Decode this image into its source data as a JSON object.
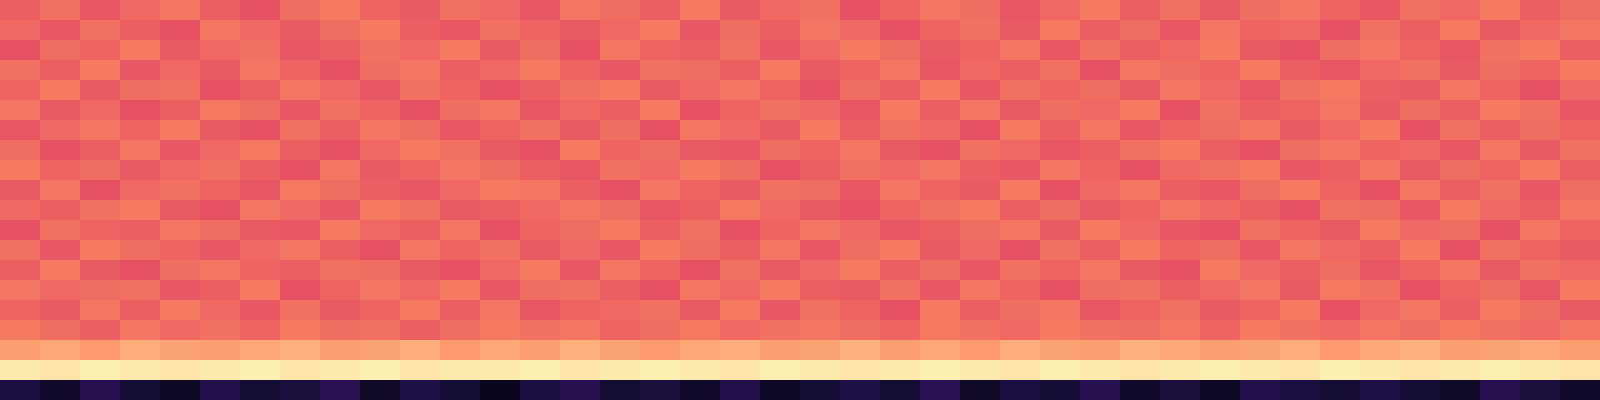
{
  "chart_data": {
    "type": "heatmap",
    "tick_labels": false,
    "zlim": [
      0,
      100
    ],
    "cells": [
      [
        66,
        70,
        64,
        68,
        71,
        66,
        63,
        69,
        72,
        67,
        65,
        70,
        68,
        64,
        71,
        69,
        66,
        72,
        65,
        68,
        70,
        63,
        67,
        71,
        69,
        64,
        68,
        72,
        66,
        70,
        65,
        69,
        71,
        67,
        64,
        70,
        68,
        72,
        66,
        69
      ],
      [
        68,
        64,
        70,
        66,
        63,
        71,
        68,
        65,
        69,
        72,
        66,
        64,
        70,
        67,
        65,
        68,
        72,
        64,
        69,
        66,
        71,
        68,
        63,
        67,
        70,
        65,
        72,
        66,
        69,
        64,
        71,
        67,
        68,
        63,
        70,
        66,
        72,
        65,
        68,
        71
      ],
      [
        63,
        69,
        67,
        72,
        65,
        68,
        70,
        64,
        66,
        70,
        68,
        72,
        65,
        69,
        63,
        71,
        67,
        66,
        70,
        64,
        68,
        72,
        69,
        65,
        67,
        71,
        64,
        70,
        66,
        68,
        72,
        65,
        63,
        69,
        71,
        67,
        64,
        70,
        72,
        66
      ],
      [
        70,
        66,
        72,
        64,
        68,
        65,
        71,
        67,
        63,
        69,
        71,
        66,
        68,
        72,
        67,
        64,
        70,
        69,
        66,
        72,
        65,
        67,
        71,
        64,
        68,
        66,
        70,
        63,
        71,
        69,
        67,
        72,
        66,
        64,
        68,
        70,
        65,
        69,
        67,
        72
      ],
      [
        67,
        72,
        65,
        69,
        70,
        63,
        66,
        71,
        68,
        64,
        70,
        67,
        63,
        66,
        70,
        72,
        65,
        68,
        71,
        67,
        63,
        69,
        66,
        72,
        64,
        70,
        67,
        69,
        65,
        71,
        68,
        64,
        70,
        72,
        66,
        65,
        71,
        67,
        63,
        68
      ],
      [
        71,
        65,
        68,
        63,
        66,
        72,
        69,
        64,
        70,
        67,
        63,
        69,
        71,
        64,
        68,
        66,
        72,
        63,
        67,
        70,
        68,
        64,
        72,
        66,
        71,
        65,
        69,
        68,
        72,
        63,
        70,
        66,
        67,
        71,
        65,
        69,
        66,
        72,
        70,
        64
      ],
      [
        64,
        68,
        71,
        67,
        72,
        65,
        63,
        70,
        66,
        71,
        69,
        64,
        67,
        70,
        65,
        69,
        63,
        71,
        68,
        65,
        72,
        66,
        70,
        68,
        63,
        72,
        66,
        71,
        64,
        67,
        69,
        71,
        65,
        68,
        72,
        63,
        70,
        66,
        69,
        67
      ],
      [
        69,
        63,
        66,
        71,
        64,
        68,
        72,
        66,
        63,
        68,
        72,
        70,
        65,
        63,
        72,
        67,
        69,
        65,
        64,
        69,
        67,
        71,
        65,
        63,
        70,
        68,
        64,
        66,
        70,
        72,
        66,
        63,
        69,
        71,
        67,
        68,
        64,
        71,
        65,
        70
      ],
      [
        72,
        67,
        69,
        65,
        68,
        70,
        66,
        63,
        71,
        65,
        67,
        71,
        69,
        66,
        64,
        70,
        68,
        72,
        69,
        63,
        66,
        70,
        68,
        71,
        66,
        64,
        71,
        67,
        63,
        68,
        70,
        72,
        64,
        66,
        71,
        65,
        69,
        67,
        72,
        66
      ],
      [
        65,
        71,
        63,
        68,
        70,
        67,
        64,
        72,
        69,
        66,
        64,
        68,
        72,
        71,
        66,
        63,
        71,
        67,
        65,
        70,
        69,
        64,
        71,
        67,
        65,
        72,
        63,
        68,
        71,
        66,
        64,
        69,
        72,
        67,
        63,
        71,
        66,
        70,
        64,
        69
      ],
      [
        68,
        66,
        70,
        72,
        65,
        63,
        71,
        68,
        64,
        72,
        70,
        65,
        66,
        68,
        71,
        69,
        64,
        66,
        72,
        68,
        65,
        63,
        67,
        70,
        72,
        66,
        69,
        65,
        67,
        71,
        68,
        66,
        63,
        70,
        69,
        64,
        72,
        68,
        66,
        71
      ],
      [
        63,
        70,
        67,
        66,
        71,
        69,
        65,
        64,
        72,
        68,
        66,
        71,
        63,
        67,
        69,
        72,
        66,
        70,
        63,
        67,
        71,
        68,
        64,
        66,
        69,
        71,
        65,
        72,
        68,
        64,
        63,
        70,
        67,
        65,
        72,
        68,
        69,
        63,
        71,
        67
      ],
      [
        70,
        64,
        72,
        69,
        67,
        64,
        68,
        71,
        66,
        63,
        71,
        67,
        70,
        65,
        68,
        64,
        72,
        69,
        66,
        71,
        64,
        69,
        72,
        65,
        68,
        63,
        70,
        66,
        72,
        67,
        69,
        64,
        71,
        68,
        66,
        72,
        63,
        70,
        67,
        65
      ],
      [
        66,
        72,
        65,
        63,
        69,
        71,
        67,
        66,
        70,
        69,
        65,
        63,
        68,
        72,
        64,
        71,
        67,
        63,
        70,
        65,
        68,
        72,
        66,
        69,
        64,
        70,
        67,
        71,
        65,
        63,
        72,
        68,
        66,
        69,
        64,
        67,
        71,
        65,
        70,
        68
      ],
      [
        71,
        68,
        69,
        70,
        64,
        66,
        72,
        63,
        67,
        71,
        68,
        72,
        64,
        69,
        70,
        66,
        63,
        71,
        68,
        72,
        66,
        65,
        70,
        64,
        71,
        67,
        63,
        69,
        70,
        66,
        68,
        71,
        65,
        72,
        70,
        63,
        67,
        69,
        64,
        72
      ],
      [
        67,
        65,
        71,
        66,
        72,
        68,
        64,
        70,
        65,
        67,
        72,
        66,
        71,
        64,
        67,
        68,
        70,
        65,
        72,
        64,
        70,
        67,
        63,
        72,
        66,
        69,
        71,
        64,
        67,
        70,
        65,
        67,
        72,
        63,
        68,
        71,
        66,
        72,
        69,
        65
      ],
      [
        72,
        69,
        66,
        71,
        68,
        70,
        67,
        72,
        69,
        70,
        66,
        69,
        72,
        70,
        71,
        67,
        69,
        72,
        68,
        70,
        71,
        69,
        67,
        72,
        70,
        68,
        72,
        70,
        69,
        71,
        67,
        72,
        70,
        68,
        71,
        69,
        72,
        70,
        68,
        71
      ],
      [
        80,
        82,
        79,
        83,
        81,
        80,
        82,
        84,
        80,
        81,
        83,
        79,
        82,
        80,
        84,
        81,
        79,
        82,
        83,
        80,
        81,
        84,
        80,
        82,
        79,
        83,
        81,
        80,
        84,
        82,
        80,
        81,
        83,
        79,
        82,
        84,
        80,
        81,
        82,
        80
      ],
      [
        96,
        95,
        97,
        96,
        95,
        96,
        97,
        95,
        96,
        97,
        95,
        96,
        96,
        97,
        95,
        96,
        97,
        96,
        95,
        97,
        96,
        95,
        96,
        97,
        96,
        95,
        97,
        96,
        95,
        96,
        97,
        96,
        95,
        97,
        96,
        95,
        96,
        97,
        96,
        95
      ],
      [
        12,
        8,
        15,
        10,
        6,
        14,
        9,
        11,
        16,
        7,
        13,
        10,
        5,
        12,
        15,
        9,
        11,
        8,
        14,
        6,
        10,
        13,
        9,
        16,
        7,
        12,
        10,
        15,
        8,
        11,
        6,
        14,
        12,
        9,
        13,
        10,
        7,
        15,
        11,
        8
      ]
    ]
  }
}
